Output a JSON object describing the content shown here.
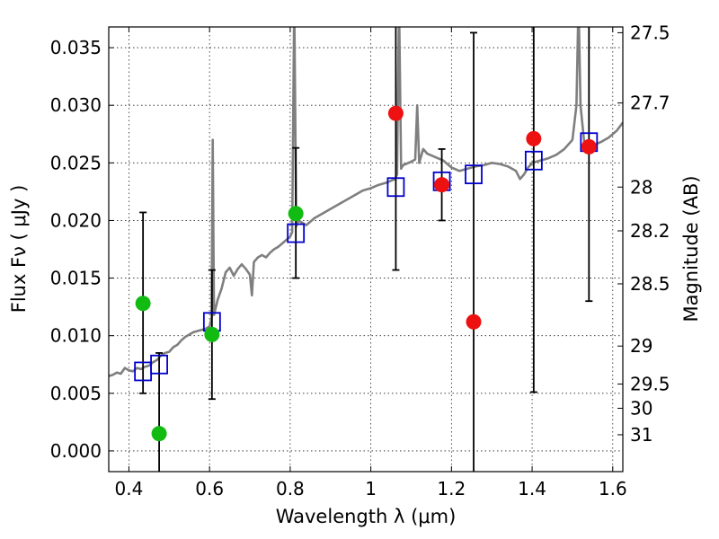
{
  "chart_data": {
    "type": "scatter",
    "xlabel": "Wavelength  λ (μm)",
    "ylabel": "Flux  Fν  ( μJy )",
    "y2label": "Magnitude (AB)",
    "xlim": [
      0.35,
      1.625
    ],
    "ylim": [
      -0.0018,
      0.0368
    ],
    "grid": true,
    "xticks": [
      {
        "v": 0.4,
        "label": "0.4"
      },
      {
        "v": 0.6,
        "label": "0.6"
      },
      {
        "v": 0.8,
        "label": "0.8"
      },
      {
        "v": 1.0,
        "label": "1"
      },
      {
        "v": 1.2,
        "label": "1.2"
      },
      {
        "v": 1.4,
        "label": "1.4"
      },
      {
        "v": 1.6,
        "label": "1.6"
      }
    ],
    "yticks": [
      {
        "v": 0.0,
        "label": "0.000"
      },
      {
        "v": 0.005,
        "label": "0.005"
      },
      {
        "v": 0.01,
        "label": "0.010"
      },
      {
        "v": 0.015,
        "label": "0.015"
      },
      {
        "v": 0.02,
        "label": "0.020"
      },
      {
        "v": 0.025,
        "label": "0.025"
      },
      {
        "v": 0.03,
        "label": "0.030"
      },
      {
        "v": 0.035,
        "label": "0.035"
      }
    ],
    "mag_ticks": [
      {
        "label": "27.5",
        "flux": 0.0363
      },
      {
        "label": "27.7",
        "flux": 0.0302
      },
      {
        "label": "28",
        "flux": 0.0229
      },
      {
        "label": "28.2",
        "flux": 0.0191
      },
      {
        "label": "28.5",
        "flux": 0.0145
      },
      {
        "label": "29",
        "flux": 0.0091
      },
      {
        "label": "29.5",
        "flux": 0.0058
      },
      {
        "label": "30",
        "flux": 0.0037
      },
      {
        "label": "31",
        "flux": 0.0014
      }
    ],
    "sed_color": "#7f7f7f",
    "sed": [
      [
        0.35,
        0.0065
      ],
      [
        0.36,
        0.0066
      ],
      [
        0.37,
        0.0068
      ],
      [
        0.38,
        0.0067
      ],
      [
        0.39,
        0.0072
      ],
      [
        0.4,
        0.007
      ],
      [
        0.41,
        0.0069
      ],
      [
        0.42,
        0.0072
      ],
      [
        0.43,
        0.0071
      ],
      [
        0.44,
        0.0073
      ],
      [
        0.45,
        0.0074
      ],
      [
        0.46,
        0.0077
      ],
      [
        0.47,
        0.0079
      ],
      [
        0.48,
        0.0083
      ],
      [
        0.49,
        0.0085
      ],
      [
        0.5,
        0.0086
      ],
      [
        0.51,
        0.009
      ],
      [
        0.52,
        0.0092
      ],
      [
        0.53,
        0.0096
      ],
      [
        0.54,
        0.0099
      ],
      [
        0.55,
        0.0101
      ],
      [
        0.56,
        0.0103
      ],
      [
        0.57,
        0.0104
      ],
      [
        0.58,
        0.0105
      ],
      [
        0.59,
        0.0106
      ],
      [
        0.6,
        0.0108
      ],
      [
        0.605,
        0.0115
      ],
      [
        0.608,
        0.027
      ],
      [
        0.611,
        0.0118
      ],
      [
        0.62,
        0.0131
      ],
      [
        0.63,
        0.0141
      ],
      [
        0.64,
        0.0155
      ],
      [
        0.65,
        0.0159
      ],
      [
        0.66,
        0.0152
      ],
      [
        0.67,
        0.0158
      ],
      [
        0.68,
        0.0162
      ],
      [
        0.69,
        0.0158
      ],
      [
        0.7,
        0.0153
      ],
      [
        0.705,
        0.0135
      ],
      [
        0.71,
        0.0164
      ],
      [
        0.72,
        0.0168
      ],
      [
        0.73,
        0.017
      ],
      [
        0.74,
        0.0168
      ],
      [
        0.75,
        0.0172
      ],
      [
        0.76,
        0.0175
      ],
      [
        0.77,
        0.0177
      ],
      [
        0.78,
        0.018
      ],
      [
        0.79,
        0.0183
      ],
      [
        0.8,
        0.0186
      ],
      [
        0.805,
        0.019
      ],
      [
        0.81,
        0.039
      ],
      [
        0.815,
        0.0195
      ],
      [
        0.82,
        0.02
      ],
      [
        0.84,
        0.0196
      ],
      [
        0.86,
        0.0202
      ],
      [
        0.88,
        0.0206
      ],
      [
        0.9,
        0.021
      ],
      [
        0.92,
        0.0214
      ],
      [
        0.94,
        0.0218
      ],
      [
        0.96,
        0.0222
      ],
      [
        0.98,
        0.0226
      ],
      [
        1.0,
        0.0228
      ],
      [
        1.02,
        0.0231
      ],
      [
        1.04,
        0.0233
      ],
      [
        1.06,
        0.0236
      ],
      [
        1.065,
        0.024
      ],
      [
        1.07,
        0.039
      ],
      [
        1.075,
        0.0245
      ],
      [
        1.08,
        0.0248
      ],
      [
        1.1,
        0.0251
      ],
      [
        1.11,
        0.0253
      ],
      [
        1.115,
        0.03
      ],
      [
        1.12,
        0.025
      ],
      [
        1.13,
        0.0262
      ],
      [
        1.14,
        0.0258
      ],
      [
        1.16,
        0.0255
      ],
      [
        1.18,
        0.0252
      ],
      [
        1.2,
        0.0246
      ],
      [
        1.22,
        0.0243
      ],
      [
        1.24,
        0.0245
      ],
      [
        1.26,
        0.0247
      ],
      [
        1.28,
        0.0248
      ],
      [
        1.3,
        0.025
      ],
      [
        1.32,
        0.0249
      ],
      [
        1.34,
        0.0247
      ],
      [
        1.36,
        0.0243
      ],
      [
        1.37,
        0.0236
      ],
      [
        1.38,
        0.024
      ],
      [
        1.39,
        0.0246
      ],
      [
        1.4,
        0.025
      ],
      [
        1.42,
        0.0252
      ],
      [
        1.44,
        0.0254
      ],
      [
        1.46,
        0.0257
      ],
      [
        1.48,
        0.0262
      ],
      [
        1.5,
        0.027
      ],
      [
        1.51,
        0.03
      ],
      [
        1.515,
        0.039
      ],
      [
        1.52,
        0.03
      ],
      [
        1.53,
        0.0265
      ],
      [
        1.54,
        0.0262
      ],
      [
        1.55,
        0.0265
      ],
      [
        1.57,
        0.0268
      ],
      [
        1.59,
        0.0272
      ],
      [
        1.61,
        0.0278
      ],
      [
        1.625,
        0.0285
      ]
    ],
    "model_color": "#0000cc",
    "model_points": [
      {
        "x": 0.435,
        "y": 0.0069
      },
      {
        "x": 0.475,
        "y": 0.0075
      },
      {
        "x": 0.606,
        "y": 0.0112
      },
      {
        "x": 0.814,
        "y": 0.0189
      },
      {
        "x": 1.062,
        "y": 0.0229
      },
      {
        "x": 1.176,
        "y": 0.0234
      },
      {
        "x": 1.255,
        "y": 0.024
      },
      {
        "x": 1.404,
        "y": 0.0252
      },
      {
        "x": 1.541,
        "y": 0.0268
      }
    ],
    "errorbar_color": "#000000",
    "observed": [
      {
        "x": 0.435,
        "y": 0.0128,
        "lo": 0.005,
        "hi": 0.0207,
        "color": "#11bb11"
      },
      {
        "x": 0.475,
        "y": 0.0015,
        "lo": -0.003,
        "hi": 0.0085,
        "color": "#11bb11"
      },
      {
        "x": 0.606,
        "y": 0.0101,
        "lo": 0.0045,
        "hi": 0.0157,
        "color": "#11bb11"
      },
      {
        "x": 0.814,
        "y": 0.0206,
        "lo": 0.015,
        "hi": 0.0263,
        "color": "#11bb11"
      },
      {
        "x": 1.062,
        "y": 0.0293,
        "lo": 0.0157,
        "hi": 0.04,
        "color": "#ee1111"
      },
      {
        "x": 1.176,
        "y": 0.0231,
        "lo": 0.02,
        "hi": 0.0262,
        "color": "#ee1111"
      },
      {
        "x": 1.255,
        "y": 0.0112,
        "lo": -0.003,
        "hi": 0.0363,
        "color": "#ee1111"
      },
      {
        "x": 1.404,
        "y": 0.0271,
        "lo": 0.0051,
        "hi": 0.04,
        "color": "#ee1111"
      },
      {
        "x": 1.541,
        "y": 0.0264,
        "lo": 0.013,
        "hi": 0.04,
        "color": "#ee1111"
      }
    ]
  }
}
